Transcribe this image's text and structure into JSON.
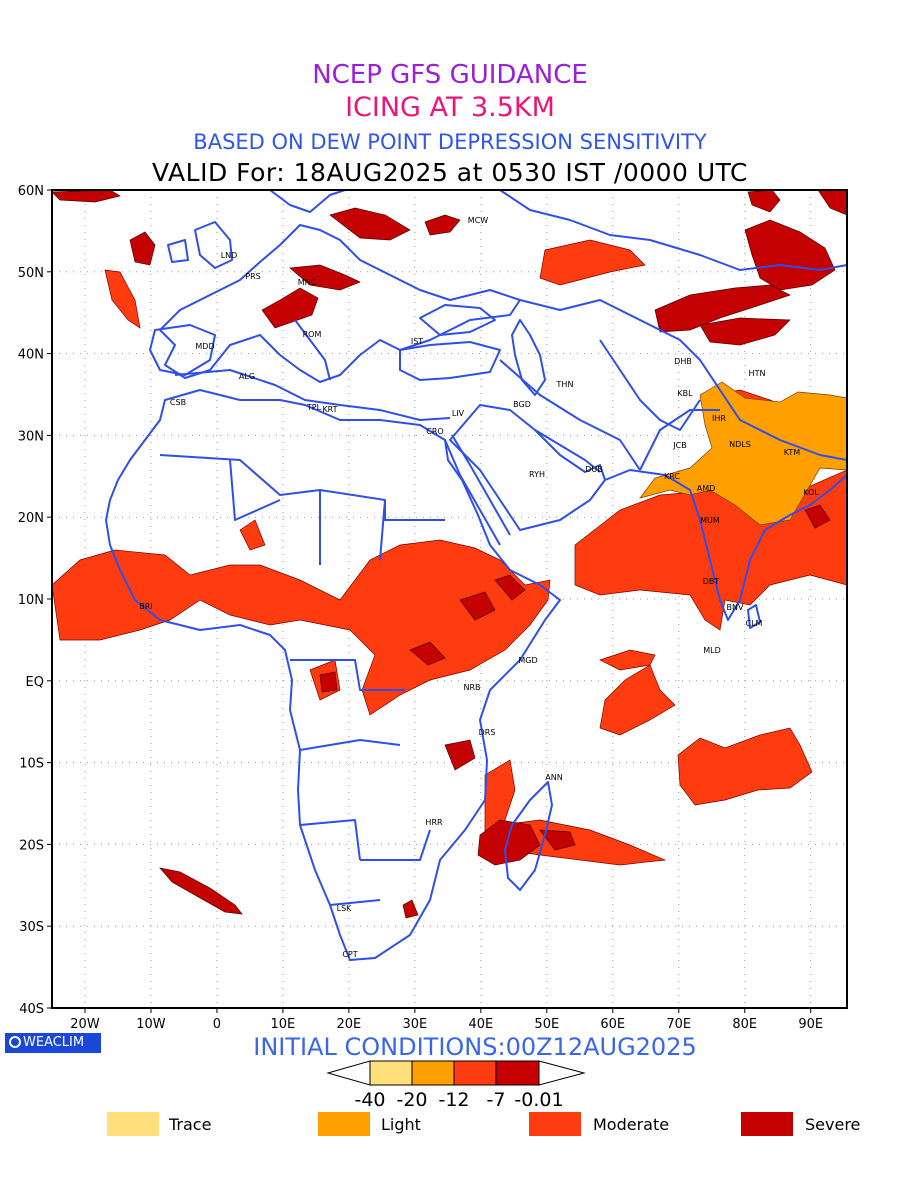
{
  "header": {
    "line1": "NCEP GFS GUIDANCE",
    "line2": "ICING AT 3.5KM",
    "line3": "BASED ON DEW POINT DEPRESSION SENSITIVITY",
    "line4": "VALID For: 18AUG2025 at 0530 IST /0000 UTC"
  },
  "colors": {
    "line1": "#9a1fd6",
    "line2": "#e8157a",
    "line3": "#2f56e6",
    "line4": "#000000",
    "coast": "#2f4fe6",
    "trace": "#ffe07a",
    "light": "#ffa000",
    "moderate": "#ff3b10",
    "severe": "#c40000"
  },
  "axes": {
    "lat_labels": [
      "60N",
      "50N",
      "40N",
      "30N",
      "20N",
      "10N",
      "EQ",
      "10S",
      "20S",
      "30S",
      "40S"
    ],
    "lon_labels": [
      "20W",
      "10W",
      "0",
      "10E",
      "20E",
      "30E",
      "40E",
      "50E",
      "60E",
      "70E",
      "80E",
      "90E"
    ]
  },
  "stations": [
    "MCW",
    "LND",
    "PRS",
    "MNC",
    "ROM",
    "MDD",
    "IST",
    "ALG",
    "CSB",
    "TPL",
    "KRT",
    "CRO",
    "LIV",
    "BGD",
    "THN",
    "DHB",
    "HTN",
    "KBL",
    "IHR",
    "NDLS",
    "JCB",
    "KTM",
    "KRC",
    "AMD",
    "KOL",
    "RYH",
    "DUB",
    "MUM",
    "DBT",
    "BNV",
    "CLM",
    "MLD",
    "MGD",
    "NRB",
    "DRS",
    "ANN",
    "HRR",
    "LSK",
    "CPT",
    "BRI"
  ],
  "branding": {
    "logo_text": "WEACLIM"
  },
  "footer": {
    "initial_conditions": "INITIAL CONDITIONS:00Z12AUG2025"
  },
  "colorbar": {
    "ticks": [
      "-40",
      "-20",
      "-12",
      "-7",
      "-0.01"
    ]
  },
  "legend": [
    "Trace",
    "Light",
    "Moderate",
    "Severe"
  ]
}
